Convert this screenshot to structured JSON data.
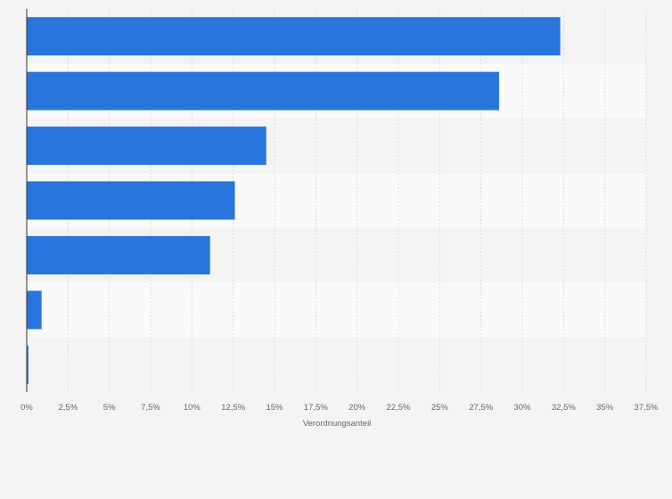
{
  "chart_data": {
    "type": "bar",
    "orientation": "horizontal",
    "categories": [
      "",
      "",
      "",
      "",
      "",
      "",
      ""
    ],
    "values": [
      32.3,
      28.6,
      14.5,
      12.6,
      11.1,
      0.9,
      0.1
    ],
    "title": "",
    "xlabel": "Verordnungsanteil",
    "ylabel": "",
    "xlim": [
      0,
      37.5
    ],
    "xticks": [
      "0%",
      "2,5%",
      "5%",
      "7,5%",
      "10%",
      "12,5%",
      "15%",
      "17,5%",
      "20%",
      "22,5%",
      "25%",
      "27,5%",
      "30%",
      "32,5%",
      "35%",
      "37,5%"
    ],
    "grid": true,
    "legend": "none",
    "colors": {
      "bar": "#2875dd",
      "background": "#f4f4f4",
      "band_light": "#fafafa",
      "band_dark": "#f4f4f4",
      "grid": "#dcdcdc",
      "axis": "#333333"
    }
  }
}
